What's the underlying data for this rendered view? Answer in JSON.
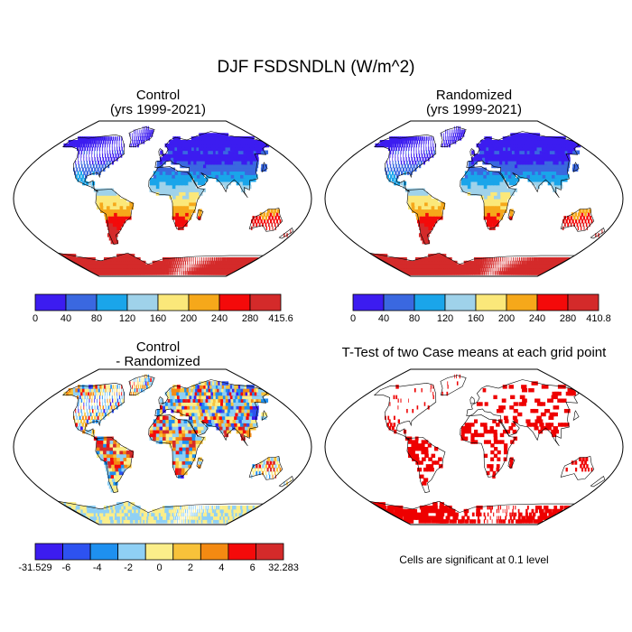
{
  "figure": {
    "title": "DJF FSDSNDLN (W/m^2)",
    "footnote": "Cells are significant at 0.1 level"
  },
  "panels": [
    {
      "id": "control",
      "title": "Control",
      "subtitle": "(yrs 1999-2021)",
      "colorbar": {
        "labels": [
          "0",
          "40",
          "80",
          "120",
          "160",
          "200",
          "240",
          "280",
          "415.6"
        ],
        "colors": [
          "#3c1cf0",
          "#3a68e0",
          "#1aa5ea",
          "#9fd2ea",
          "#fbe87a",
          "#f6a81a",
          "#f40a0a",
          "#d42a2a"
        ]
      }
    },
    {
      "id": "randomized",
      "title": "Randomized",
      "subtitle": "(yrs 1999-2021)",
      "colorbar": {
        "labels": [
          "0",
          "40",
          "80",
          "120",
          "160",
          "200",
          "240",
          "280",
          "410.8"
        ],
        "colors": [
          "#3c1cf0",
          "#3a68e0",
          "#1aa5ea",
          "#9fd2ea",
          "#fbe87a",
          "#f6a81a",
          "#f40a0a",
          "#d42a2a"
        ]
      }
    },
    {
      "id": "difference",
      "title": "Control",
      "subtitle": "- Randomized",
      "colorbar": {
        "labels": [
          "-31.529",
          "-6",
          "-4",
          "-2",
          "0",
          "2",
          "4",
          "6",
          "32.283"
        ],
        "colors": [
          "#3c1cf0",
          "#2d52f0",
          "#1e90f0",
          "#8fd0f5",
          "#fbee8a",
          "#f8c23a",
          "#f48a12",
          "#f40a0a",
          "#d42a2a"
        ]
      }
    },
    {
      "id": "ttest",
      "title": "T-Test of two Case means at each grid point",
      "subtitle": "",
      "significant_color": "#ee0000"
    }
  ]
}
